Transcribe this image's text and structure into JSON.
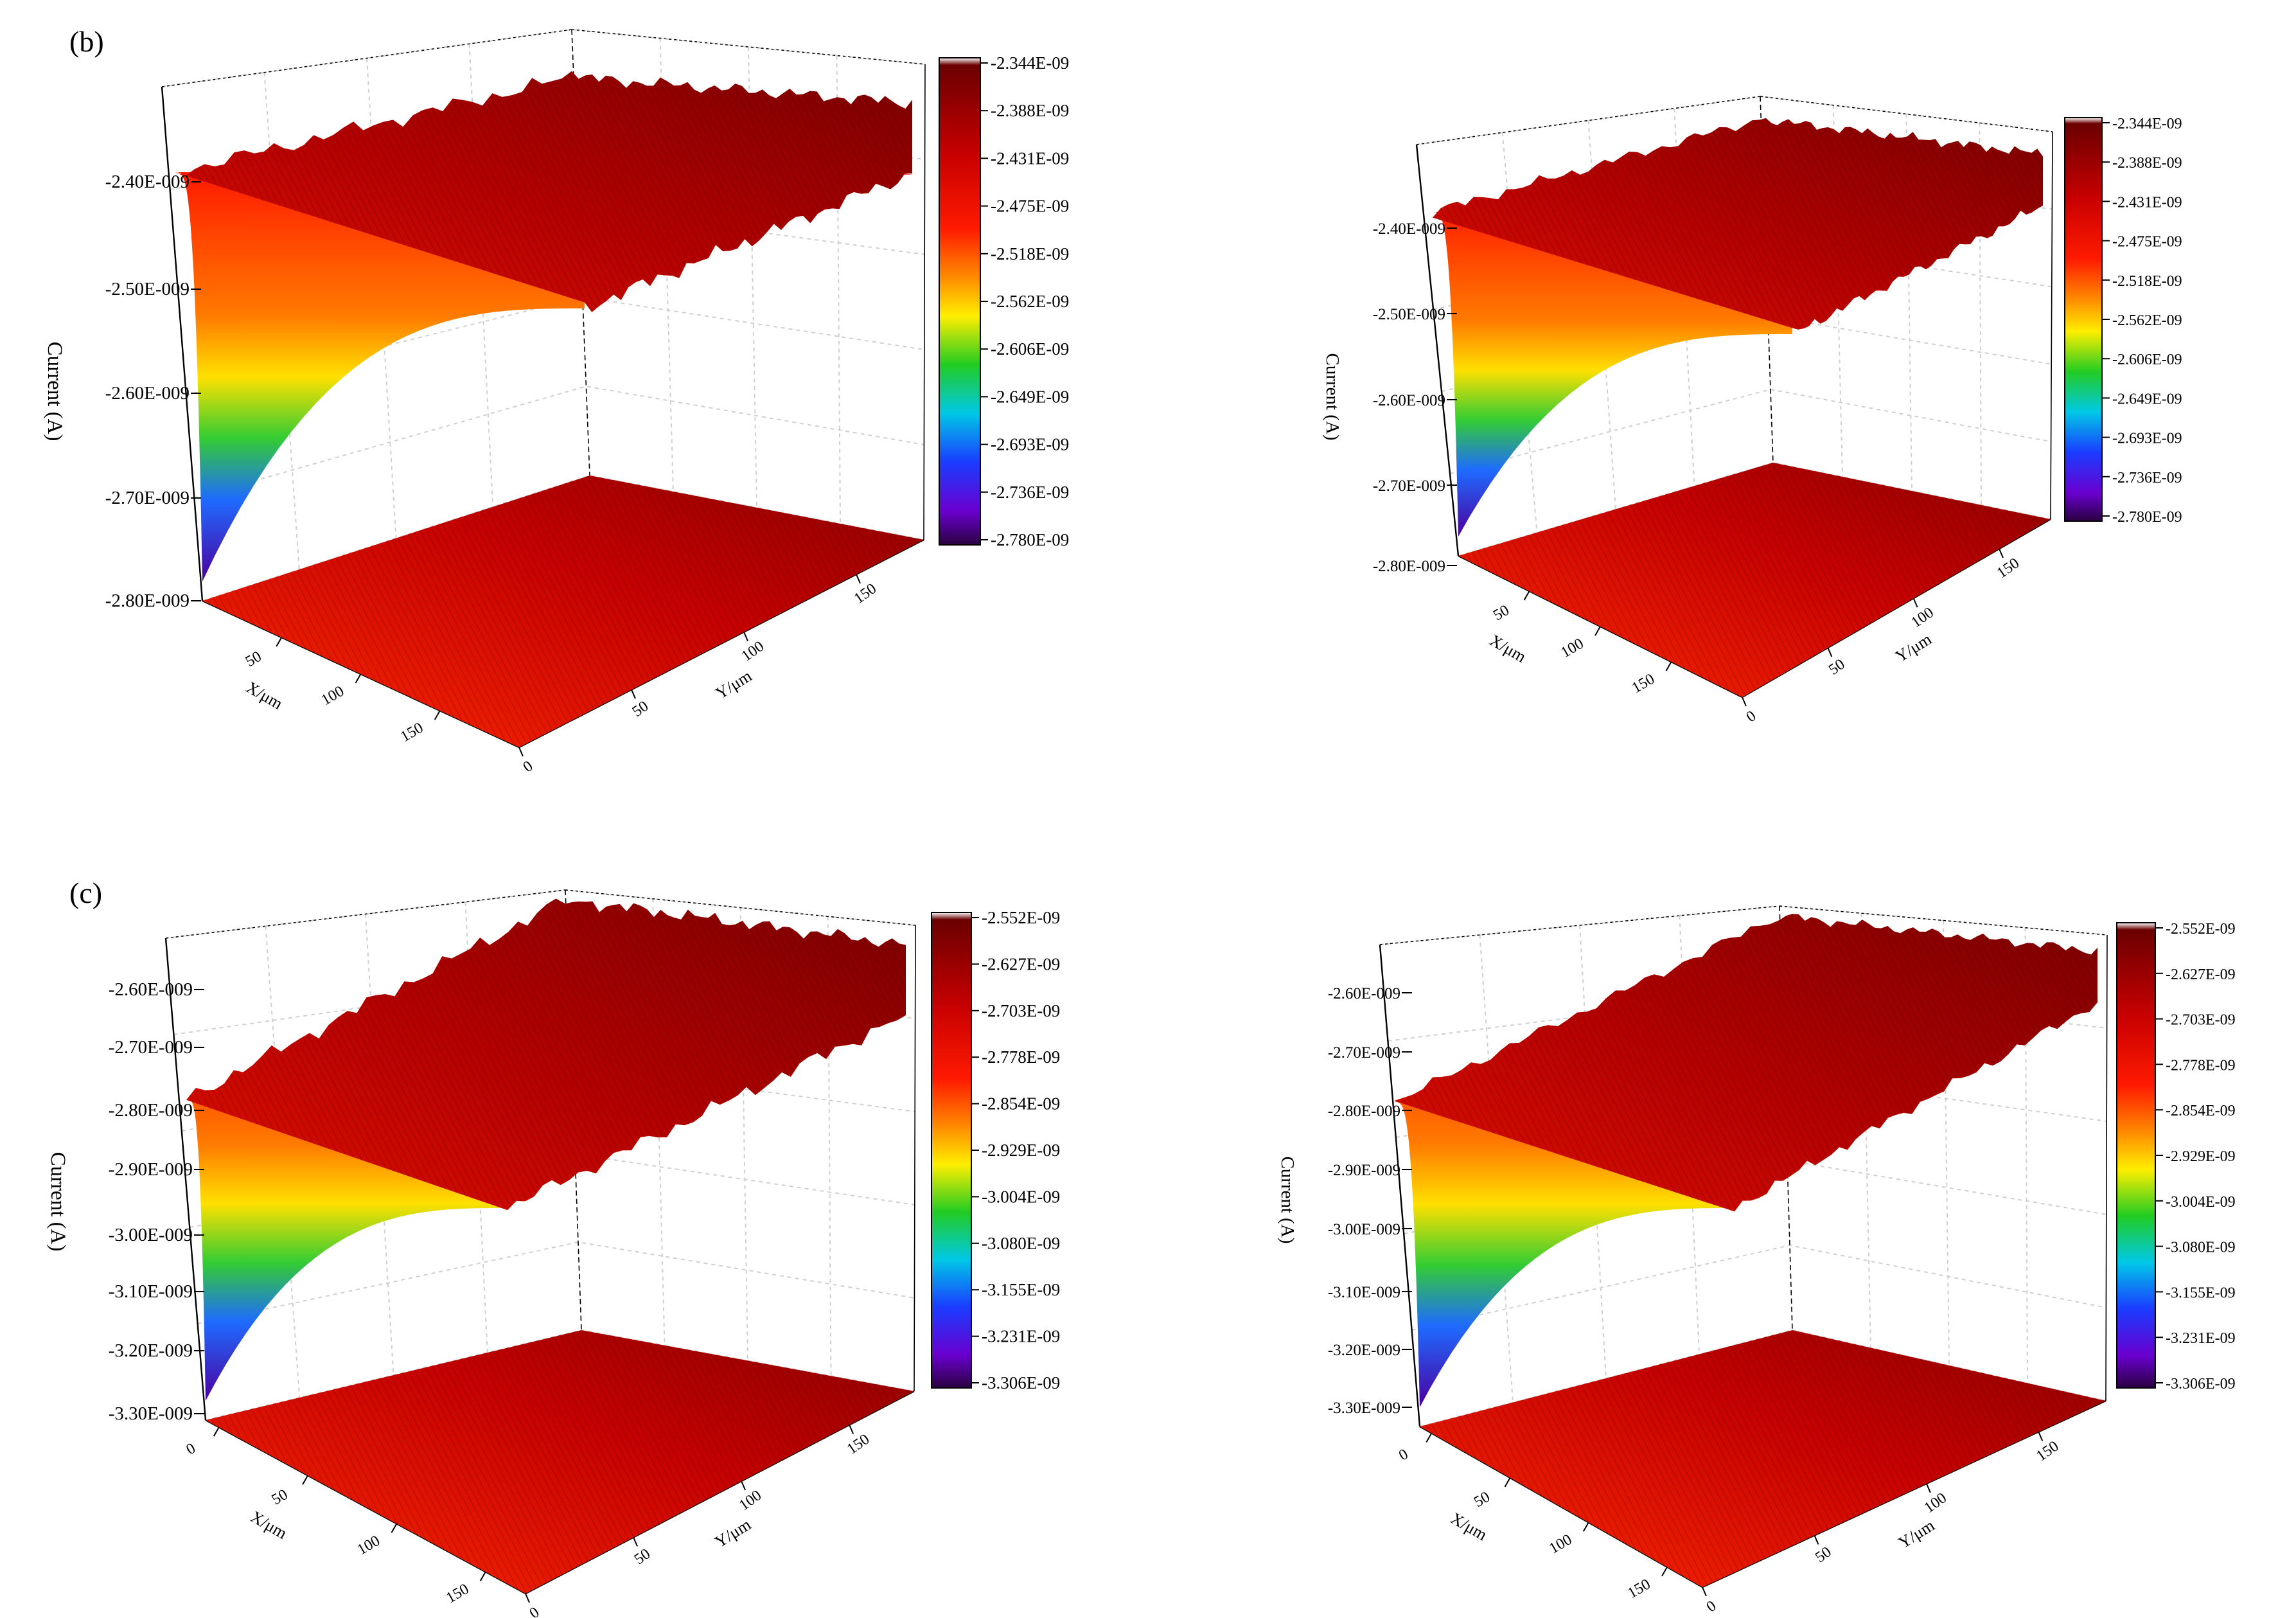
{
  "chart_data": [
    {
      "type": "surface3d",
      "panel_label": "(b)",
      "zlabel": "Current (A)",
      "z_ticks": [
        "-2.40E-009",
        "-2.50E-009",
        "-2.60E-009",
        "-2.70E-009",
        "-2.80E-009"
      ],
      "zlim": [
        -2.8e-09,
        -2.344e-09
      ],
      "xlabel": "X/μm",
      "ylabel": "Y/μm",
      "x_ticks": [
        "50",
        "100",
        "150"
      ],
      "y_ticks": [
        "0",
        "50",
        "100",
        "150"
      ],
      "colorbar_ticks": [
        "-2.344E-09",
        "-2.388E-09",
        "-2.431E-09",
        "-2.475E-09",
        "-2.518E-09",
        "-2.562E-09",
        "-2.606E-09",
        "-2.649E-09",
        "-2.693E-09",
        "-2.736E-09",
        "-2.780E-09"
      ],
      "surface": {
        "z_min": -2.78e-09,
        "z_plateau": -2.38e-09,
        "edge_drop": "sharp exponential rise near X=0, Y=0"
      }
    },
    {
      "type": "surface3d",
      "panel_label": "",
      "zlabel": "Current (A)",
      "z_ticks": [
        "-2.40E-009",
        "-2.50E-009",
        "-2.60E-009",
        "-2.70E-009",
        "-2.80E-009"
      ],
      "zlim": [
        -2.8e-09,
        -2.344e-09
      ],
      "xlabel": "X/μm",
      "ylabel": "Y/μm",
      "x_ticks": [
        "50",
        "100",
        "150"
      ],
      "y_ticks": [
        "0",
        "50",
        "100",
        "150"
      ],
      "colorbar_ticks": [
        "-2.344E-09",
        "-2.388E-09",
        "-2.431E-09",
        "-2.475E-09",
        "-2.518E-09",
        "-2.562E-09",
        "-2.606E-09",
        "-2.649E-09",
        "-2.693E-09",
        "-2.736E-09",
        "-2.780E-09"
      ],
      "surface": {
        "z_min": -2.78e-09,
        "z_plateau": -2.38e-09,
        "edge_drop": "sharp exponential rise near X=0, Y=0"
      }
    },
    {
      "type": "surface3d",
      "panel_label": "(c)",
      "zlabel": "Current (A)",
      "z_ticks": [
        "-2.60E-009",
        "-2.70E-009",
        "-2.80E-009",
        "-2.90E-009",
        "-3.00E-009",
        "-3.10E-009",
        "-3.20E-009",
        "-3.30E-009"
      ],
      "zlim": [
        -3.3e-09,
        -2.552e-09
      ],
      "xlabel": "X/μm",
      "ylabel": "Y/μm",
      "x_ticks": [
        "0",
        "50",
        "100",
        "150"
      ],
      "y_ticks": [
        "0",
        "50",
        "100",
        "150"
      ],
      "colorbar_ticks": [
        "-2.552E-09",
        "-2.627E-09",
        "-2.703E-09",
        "-2.778E-09",
        "-2.854E-09",
        "-2.929E-09",
        "-3.004E-09",
        "-3.080E-09",
        "-3.155E-09",
        "-3.231E-09",
        "-3.306E-09"
      ],
      "surface": {
        "z_min": -3.3e-09,
        "z_plateau": -2.6e-09,
        "edge_drop": "sharp exponential rise near X=0, Y=0"
      }
    },
    {
      "type": "surface3d",
      "panel_label": "",
      "zlabel": "Current (A)",
      "z_ticks": [
        "-2.60E-009",
        "-2.70E-009",
        "-2.80E-009",
        "-2.90E-009",
        "-3.00E-009",
        "-3.10E-009",
        "-3.20E-009",
        "-3.30E-009"
      ],
      "zlim": [
        -3.3e-09,
        -2.552e-09
      ],
      "xlabel": "X/μm",
      "ylabel": "Y/μm",
      "x_ticks": [
        "0",
        "50",
        "100",
        "150"
      ],
      "y_ticks": [
        "0",
        "50",
        "100",
        "150"
      ],
      "colorbar_ticks": [
        "-2.552E-09",
        "-2.627E-09",
        "-2.703E-09",
        "-2.778E-09",
        "-2.854E-09",
        "-2.929E-09",
        "-3.004E-09",
        "-3.080E-09",
        "-3.155E-09",
        "-3.231E-09",
        "-3.306E-09"
      ],
      "surface": {
        "z_min": -3.3e-09,
        "z_plateau": -2.6e-09,
        "edge_drop": "sharp exponential rise near X=0, Y=0"
      }
    }
  ]
}
